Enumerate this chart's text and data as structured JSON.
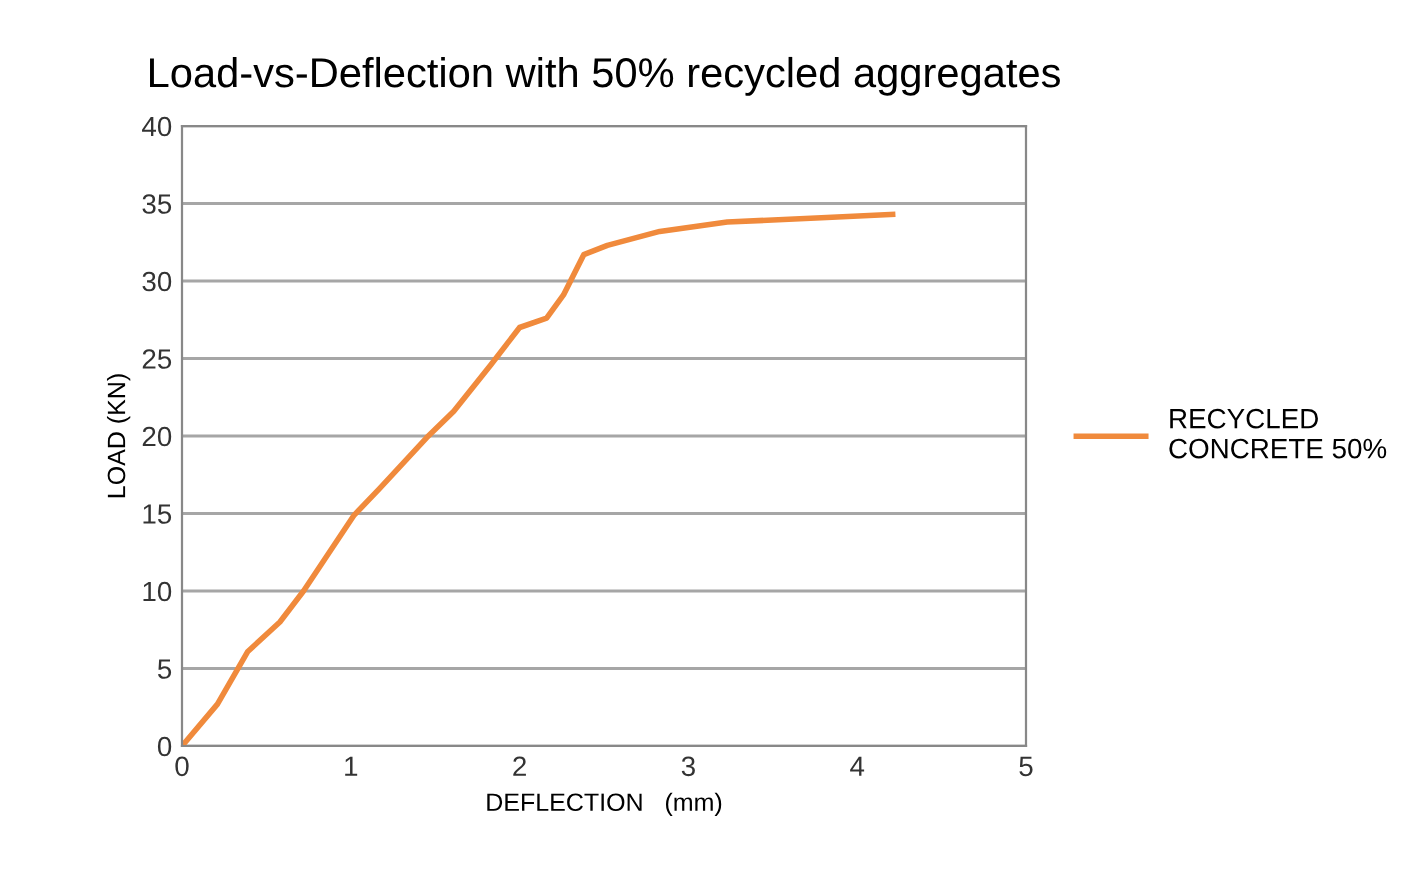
{
  "chart_data": {
    "type": "line",
    "title": "Load-vs-Deflection with 50% recycled aggregates",
    "xlabel": "DEFLECTION   (mm)",
    "ylabel": "LOAD (KN)",
    "series": [
      {
        "name": "RECYCLED\nCONCRETE 50%",
        "color": "#f08a3c",
        "x": [
          0,
          0.21,
          0.39,
          0.58,
          0.72,
          1.02,
          1.17,
          1.45,
          1.61,
          1.83,
          2.0,
          2.16,
          2.26,
          2.38,
          2.52,
          2.83,
          3.23,
          3.82,
          4.21
        ],
        "values": [
          0,
          2.7,
          6.1,
          8.0,
          10.0,
          14.9,
          16.6,
          19.9,
          21.6,
          24.6,
          27.0,
          27.6,
          29.1,
          31.7,
          32.3,
          33.2,
          33.8,
          34.1,
          34.3
        ]
      }
    ],
    "xlim": [
      0,
      5
    ],
    "xticks": [
      0,
      1,
      2,
      3,
      4,
      5
    ],
    "ylim": [
      0,
      40
    ],
    "yticks": [
      0,
      5,
      10,
      15,
      20,
      25,
      30,
      35,
      40
    ],
    "grid": "y",
    "legend": "right"
  }
}
